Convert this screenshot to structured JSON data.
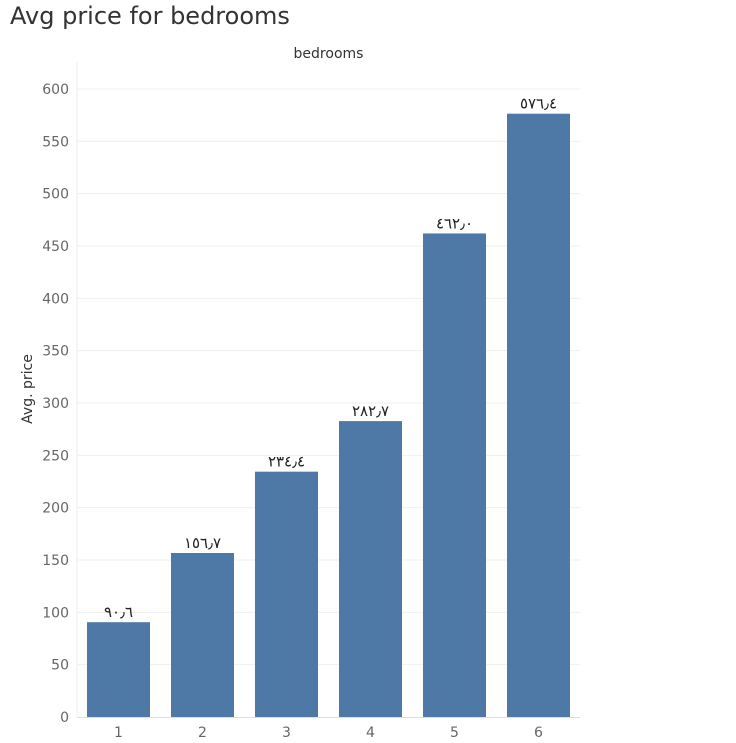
{
  "chart_data": {
    "type": "bar",
    "title": "Avg price for bedrooms",
    "column_header": "bedrooms",
    "ylabel": "Avg. price",
    "categories": [
      "1",
      "2",
      "3",
      "4",
      "5",
      "6"
    ],
    "values": [
      90.6,
      156.7,
      234.4,
      282.7,
      462.0,
      576.4
    ],
    "data_labels": [
      "٩٠٫٦",
      "١٥٦٫٧",
      "٢٣٤٫٤",
      "٢٨٢٫٧",
      "٤٦٢٫٠",
      "٥٧٦٫٤"
    ],
    "ylim": [
      0,
      600
    ],
    "yticks": [
      0,
      50,
      100,
      150,
      200,
      250,
      300,
      350,
      400,
      450,
      500,
      550,
      600
    ],
    "grid": true,
    "bar_color": "#4e79a7"
  }
}
